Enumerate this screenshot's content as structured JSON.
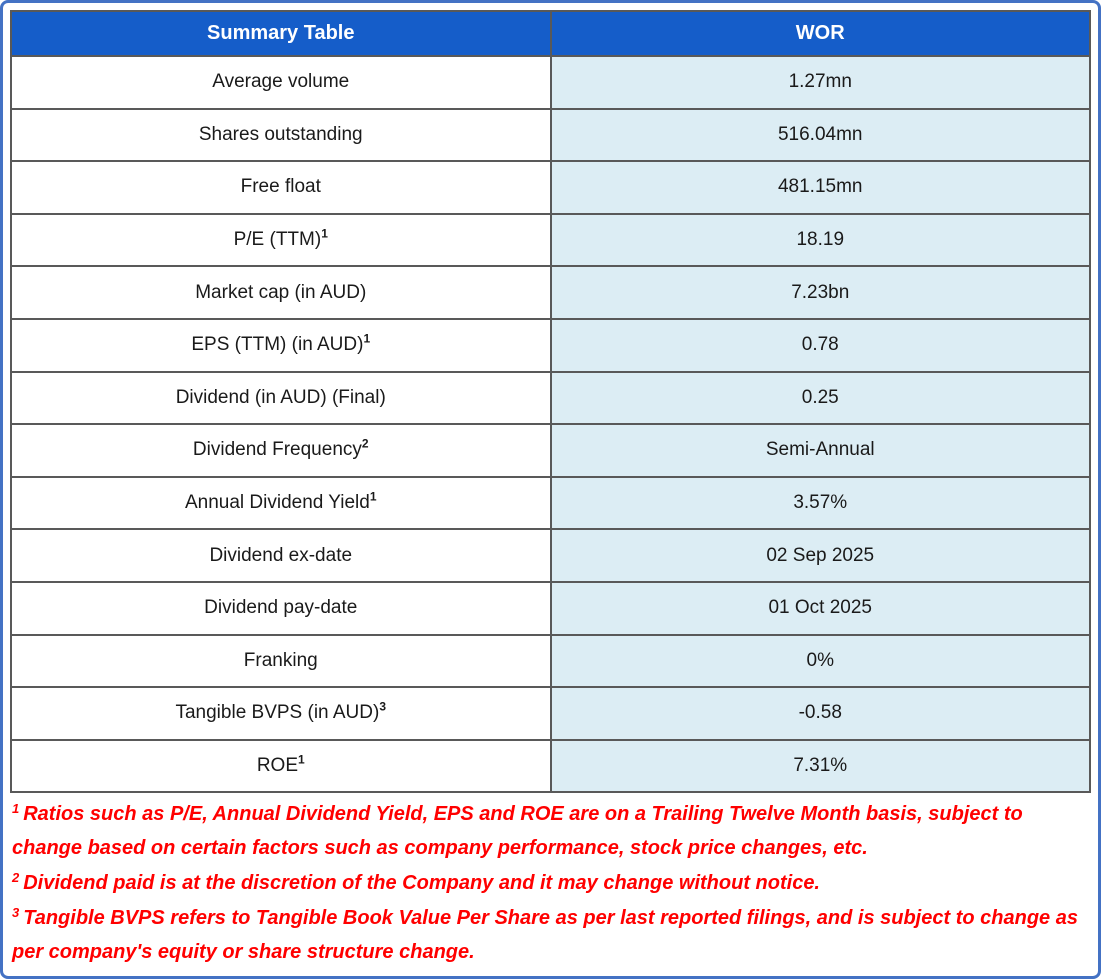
{
  "table": {
    "header": {
      "col1": "Summary Table",
      "col2": "WOR"
    },
    "rows": [
      {
        "label": "Average volume",
        "value": "1.27mn"
      },
      {
        "label": "Shares outstanding",
        "value": "516.04mn"
      },
      {
        "label": "Free float",
        "value": "481.15mn"
      },
      {
        "label": "P/E (TTM)",
        "sup": "1",
        "value": "18.19"
      },
      {
        "label": "Market cap (in AUD)",
        "value": "7.23bn"
      },
      {
        "label": "EPS (TTM) (in AUD)",
        "sup": "1",
        "value": "0.78"
      },
      {
        "label": "Dividend (in AUD) (Final)",
        "value": "0.25"
      },
      {
        "label": "Dividend Frequency",
        "sup": "2",
        "value": "Semi-Annual"
      },
      {
        "label": "Annual Dividend Yield",
        "sup": "1",
        "value": "3.57%"
      },
      {
        "label": "Dividend ex-date",
        "value": "02 Sep 2025"
      },
      {
        "label": "Dividend pay-date",
        "value": "01 Oct 2025"
      },
      {
        "label": "Franking",
        "value": "0%"
      },
      {
        "label": "Tangible BVPS (in AUD)",
        "sup": "3",
        "value": "-0.58"
      },
      {
        "label": "ROE",
        "sup": "1",
        "value": "7.31%"
      }
    ]
  },
  "footnotes": [
    {
      "sup": "1",
      "text": "Ratios such as P/E, Annual Dividend Yield, EPS and ROE are on a Trailing Twelve Month basis, subject to change based on certain factors such as company performance, stock price changes, etc."
    },
    {
      "sup": "2",
      "text": "Dividend paid is at the discretion of the Company and it may change without notice."
    },
    {
      "sup": "3",
      "text": "Tangible BVPS refers to Tangible Book Value Per Share as per last reported filings, and is subject to change as per company's equity or share structure change."
    }
  ],
  "colors": {
    "header_fill": "#155dc9",
    "header_text": "#ffffff",
    "value_cell_fill": "#dcedf4",
    "cell_border": "#595959",
    "outer_border": "#4472c4",
    "footnote_text": "#ff0000"
  }
}
